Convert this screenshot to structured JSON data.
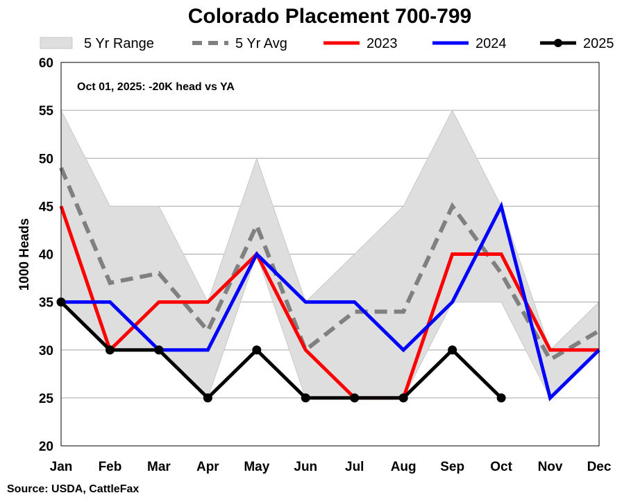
{
  "chart_data": {
    "type": "line",
    "title": "Colorado Placement 700-799",
    "ylabel": "1000 Heads",
    "xlabel": "",
    "ylim": [
      20,
      60
    ],
    "yticks": [
      20,
      25,
      30,
      35,
      40,
      45,
      50,
      55,
      60
    ],
    "grid": true,
    "categories": [
      "Jan",
      "Feb",
      "Mar",
      "Apr",
      "May",
      "Jun",
      "Jul",
      "Aug",
      "Sep",
      "Oct",
      "Nov",
      "Dec"
    ],
    "range": {
      "name": "5 Yr Range",
      "color": "#dedede",
      "low": [
        35,
        30,
        30,
        25,
        40,
        25,
        25,
        25,
        35,
        35,
        25,
        30
      ],
      "high": [
        55,
        45,
        45,
        35,
        50,
        35,
        40,
        45,
        55,
        45,
        30,
        35
      ]
    },
    "series": [
      {
        "name": "5 Yr Avg",
        "color": "#808080",
        "dashed": true,
        "markers": false,
        "values": [
          49,
          37,
          38,
          32,
          43,
          30,
          34,
          34,
          45,
          38,
          29,
          32
        ]
      },
      {
        "name": "2023",
        "color": "#ff0000",
        "dashed": false,
        "markers": false,
        "values": [
          45,
          30,
          35,
          35,
          40,
          30,
          25,
          25,
          40,
          40,
          30,
          30
        ]
      },
      {
        "name": "2024",
        "color": "#0000ff",
        "dashed": false,
        "markers": false,
        "values": [
          35,
          35,
          30,
          30,
          40,
          35,
          35,
          30,
          35,
          45,
          25,
          30
        ]
      },
      {
        "name": "2025",
        "color": "#000000",
        "dashed": false,
        "markers": true,
        "values": [
          35,
          30,
          30,
          25,
          30,
          25,
          25,
          25,
          30,
          25,
          null,
          null
        ]
      }
    ],
    "annotation": "Oct 01, 2025: -20K head vs YA",
    "source": "Source: USDA, CattleFax",
    "legend_position": "top"
  }
}
